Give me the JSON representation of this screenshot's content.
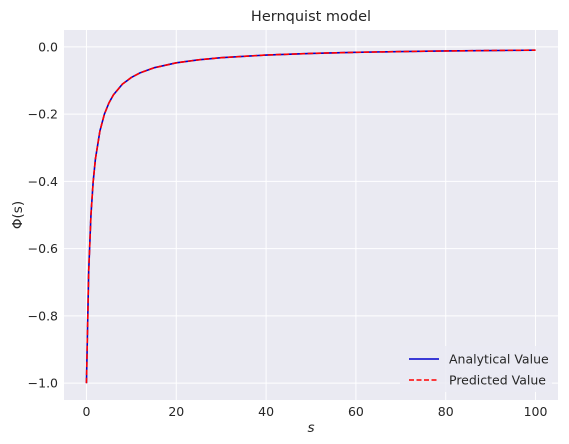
{
  "chart_data": {
    "type": "line",
    "title": "Hernquist model",
    "xlabel": "s",
    "ylabel": "Φ(s)",
    "xlim": [
      -5,
      105
    ],
    "ylim": [
      -1.05,
      0.05
    ],
    "xticks": [
      0,
      20,
      40,
      60,
      80,
      100
    ],
    "yticks": [
      -1.0,
      -0.8,
      -0.6,
      -0.4,
      -0.2,
      0.0
    ],
    "xtick_labels": [
      "0",
      "20",
      "40",
      "60",
      "80",
      "100"
    ],
    "ytick_labels": [
      "−1.0",
      "−0.8",
      "−0.6",
      "−0.4",
      "−0.2",
      "0.0"
    ],
    "grid": true,
    "legend_position": "lower-right",
    "background_color": "#eaeaf2",
    "x": [
      0,
      0.5,
      1,
      1.5,
      2,
      3,
      4,
      5,
      6,
      8,
      10,
      12,
      15,
      20,
      25,
      30,
      40,
      50,
      60,
      70,
      80,
      90,
      100
    ],
    "series": [
      {
        "name": "Analytical Value",
        "color": "#0000cc",
        "style": "solid",
        "values": [
          -1.0,
          -0.667,
          -0.5,
          -0.4,
          -0.333,
          -0.25,
          -0.2,
          -0.167,
          -0.143,
          -0.111,
          -0.091,
          -0.077,
          -0.0625,
          -0.0476,
          -0.0385,
          -0.0323,
          -0.0244,
          -0.0196,
          -0.0164,
          -0.0141,
          -0.0123,
          -0.011,
          -0.0099
        ]
      },
      {
        "name": "Predicted Value",
        "color": "#ff0000",
        "style": "dashed",
        "values": [
          -1.0,
          -0.667,
          -0.5,
          -0.4,
          -0.333,
          -0.25,
          -0.2,
          -0.167,
          -0.143,
          -0.111,
          -0.091,
          -0.077,
          -0.0625,
          -0.0476,
          -0.0385,
          -0.0323,
          -0.0244,
          -0.0196,
          -0.0164,
          -0.0141,
          -0.0123,
          -0.011,
          -0.0099
        ]
      }
    ]
  }
}
